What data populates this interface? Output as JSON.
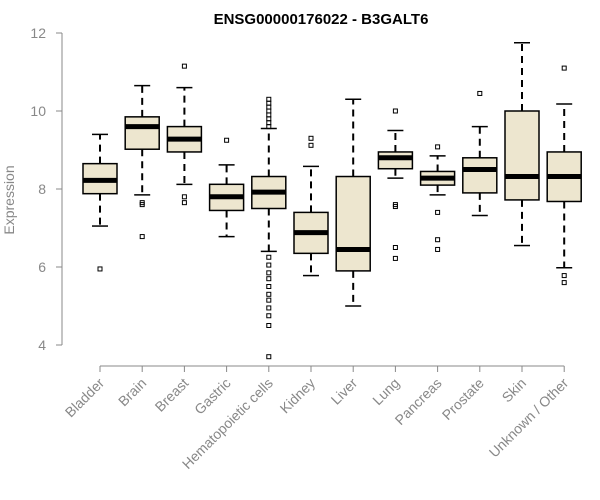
{
  "chart_data": {
    "type": "boxplot",
    "title": "ENSG00000176022 - B3GALT6",
    "xlabel": "",
    "ylabel": "Expression",
    "ylim": [
      3.4,
      12.3
    ],
    "yticks": [
      4,
      6,
      8,
      10,
      12
    ],
    "grid": false,
    "box_color": "#ede6cf",
    "outline_color": "#000000",
    "categories": [
      "Bladder",
      "Brain",
      "Breast",
      "Gastric",
      "Hematopoietic cells",
      "Kidney",
      "Liver",
      "Lung",
      "Pancreas",
      "Prostate",
      "Skin",
      "Unknown / Other"
    ],
    "boxes": [
      {
        "name": "Bladder",
        "whisker_low": 7.05,
        "q1": 7.88,
        "median": 8.22,
        "q3": 8.65,
        "whisker_high": 9.4,
        "outliers": [
          5.95
        ]
      },
      {
        "name": "Brain",
        "whisker_low": 7.85,
        "q1": 9.02,
        "median": 9.6,
        "q3": 9.85,
        "whisker_high": 10.65,
        "outliers": [
          7.6,
          7.65,
          6.78
        ]
      },
      {
        "name": "Breast",
        "whisker_low": 8.12,
        "q1": 8.95,
        "median": 9.28,
        "q3": 9.6,
        "whisker_high": 10.6,
        "outliers": [
          11.15,
          7.65,
          7.8
        ]
      },
      {
        "name": "Gastric",
        "whisker_low": 6.78,
        "q1": 7.45,
        "median": 7.8,
        "q3": 8.12,
        "whisker_high": 8.62,
        "outliers": [
          9.25
        ]
      },
      {
        "name": "Hematopoietic cells",
        "whisker_low": 6.4,
        "q1": 7.5,
        "median": 7.92,
        "q3": 8.32,
        "whisker_high": 9.55,
        "outliers": [
          10.3,
          10.2,
          10.1,
          10.0,
          9.9,
          9.8,
          9.7,
          9.6,
          6.25,
          6.05,
          5.85,
          5.7,
          5.5,
          5.3,
          5.15,
          4.95,
          4.75,
          4.5,
          3.7
        ]
      },
      {
        "name": "Kidney",
        "whisker_low": 5.78,
        "q1": 6.35,
        "median": 6.88,
        "q3": 7.4,
        "whisker_high": 8.58,
        "outliers": [
          9.3,
          9.12
        ]
      },
      {
        "name": "Liver",
        "whisker_low": 5.0,
        "q1": 5.9,
        "median": 6.45,
        "q3": 8.32,
        "whisker_high": 10.3,
        "outliers": []
      },
      {
        "name": "Lung",
        "whisker_low": 8.28,
        "q1": 8.52,
        "median": 8.8,
        "q3": 8.95,
        "whisker_high": 9.5,
        "outliers": [
          10.0,
          7.6,
          7.55,
          6.5,
          6.22
        ]
      },
      {
        "name": "Pancreas",
        "whisker_low": 7.85,
        "q1": 8.1,
        "median": 8.28,
        "q3": 8.45,
        "whisker_high": 8.85,
        "outliers": [
          9.08,
          7.4,
          6.7,
          6.45
        ]
      },
      {
        "name": "Prostate",
        "whisker_low": 7.32,
        "q1": 7.9,
        "median": 8.5,
        "q3": 8.8,
        "whisker_high": 9.6,
        "outliers": [
          10.45
        ]
      },
      {
        "name": "Skin",
        "whisker_low": 6.55,
        "q1": 7.72,
        "median": 8.32,
        "q3": 10.0,
        "whisker_high": 11.75,
        "outliers": []
      },
      {
        "name": "Unknown / Other",
        "whisker_low": 5.98,
        "q1": 7.68,
        "median": 8.32,
        "q3": 8.95,
        "whisker_high": 10.18,
        "outliers": [
          11.1,
          5.78,
          5.6
        ]
      }
    ]
  }
}
